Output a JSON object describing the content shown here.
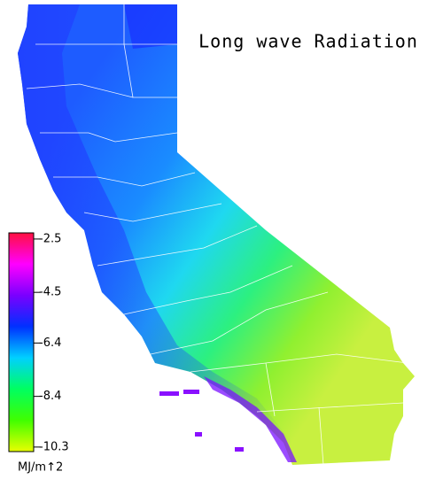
{
  "title": "Long wave Radiation",
  "colorbar": {
    "label": "MJ/m↑2",
    "lim": [
      -2.27,
      -10.47
    ],
    "ticks": [
      -2.5,
      -4.5,
      -6.4,
      -8.4,
      -10.3
    ],
    "colors": [
      "#ff1040",
      "#ff00ff",
      "#7a00ff",
      "#0030ff",
      "#00d0ff",
      "#00ff60",
      "#40ff00",
      "#e8ff00"
    ]
  }
}
